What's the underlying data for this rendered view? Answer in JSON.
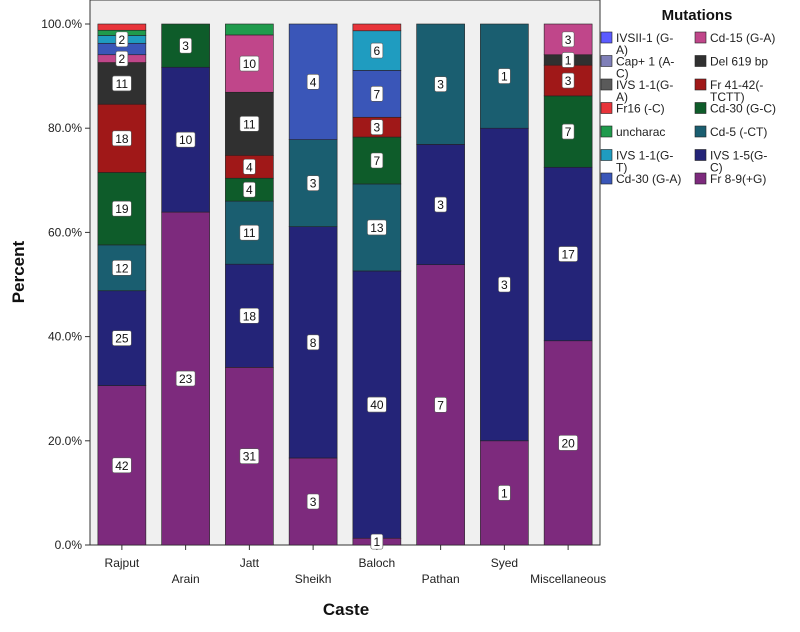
{
  "chart_data": {
    "type": "bar",
    "stacked": true,
    "title": "",
    "xlabel": "Caste",
    "ylabel": "Percent",
    "ylim": [
      0,
      100
    ],
    "yticks": [
      "0.0%",
      "20.0%",
      "40.0%",
      "60.0%",
      "80.0%",
      "100.0%"
    ],
    "categories": [
      "Rajput",
      "Arain",
      "Jatt",
      "Sheikh",
      "Baloch",
      "Pathan",
      "Syed",
      "Miscellaneous"
    ],
    "legend_title": "Mutations",
    "legend": [
      {
        "name": "IVSII-1 (G-A)",
        "lines": [
          "IVSII-1 (G-",
          "A)"
        ],
        "color": "#5b5bff"
      },
      {
        "name": "Cap+ 1 (A-C)",
        "lines": [
          "Cap+ 1 (A-",
          "C)"
        ],
        "color": "#7f7fb8"
      },
      {
        "name": "IVS 1-1(G-A)",
        "lines": [
          "IVS 1-1(G-",
          "A)"
        ],
        "color": "#5a5a5a"
      },
      {
        "name": "Fr16 (-C)",
        "lines": [
          "Fr16 (-C)"
        ],
        "color": "#e8343a"
      },
      {
        "name": "uncharac",
        "lines": [
          "uncharac"
        ],
        "color": "#1f9a4c"
      },
      {
        "name": "IVS 1-1(G-T)",
        "lines": [
          "IVS 1-1(G-",
          "T)"
        ],
        "color": "#1f9cc0"
      },
      {
        "name": "Cd-30 (G-A)",
        "lines": [
          "Cd-30 (G-A)"
        ],
        "color": "#3a56b8"
      },
      {
        "name": "Cd-15 (G-A)",
        "lines": [
          "Cd-15 (G-A)"
        ],
        "color": "#c0468a"
      },
      {
        "name": "Del 619 bp",
        "lines": [
          "Del 619 bp"
        ],
        "color": "#303030"
      },
      {
        "name": "Fr 41-42(-TCTT)",
        "lines": [
          "Fr 41-42(-",
          "TCTT)"
        ],
        "color": "#a01818"
      },
      {
        "name": "Cd-30 (G-C)",
        "lines": [
          "Cd-30 (G-C)"
        ],
        "color": "#0e5c2a"
      },
      {
        "name": "Cd-5 (-CT)",
        "lines": [
          "Cd-5 (-CT)"
        ],
        "color": "#1a5e70"
      },
      {
        "name": "IVS 1-5(G-C)",
        "lines": [
          "IVS 1-5(G-",
          "C)"
        ],
        "color": "#242478"
      },
      {
        "name": "Fr 8-9(+G)",
        "lines": [
          "Fr 8-9(+G)"
        ],
        "color": "#7d2a7d"
      }
    ],
    "stacks": [
      {
        "category": "Rajput",
        "segments": [
          {
            "mutation": "Fr 8-9(+G)",
            "percent": 30.6,
            "label": "42"
          },
          {
            "mutation": "IVS 1-5(G-C)",
            "percent": 18.2,
            "label": "25"
          },
          {
            "mutation": "Cd-5 (-CT)",
            "percent": 8.8,
            "label": "12"
          },
          {
            "mutation": "Cd-30 (G-C)",
            "percent": 13.9,
            "label": "19"
          },
          {
            "mutation": "Fr 41-42(-TCTT)",
            "percent": 13.1,
            "label": "18"
          },
          {
            "mutation": "Del 619 bp",
            "percent": 8.0,
            "label": "11"
          },
          {
            "mutation": "Cd-15 (G-A)",
            "percent": 1.5,
            "label": "2"
          },
          {
            "mutation": "Cd-30 (G-A)",
            "percent": 2.2,
            "label": ""
          },
          {
            "mutation": "IVS 1-1(G-T)",
            "percent": 1.5,
            "label": "2"
          },
          {
            "mutation": "uncharac",
            "percent": 1.0,
            "label": ""
          },
          {
            "mutation": "Fr16 (-C)",
            "percent": 1.2,
            "label": ""
          }
        ]
      },
      {
        "category": "Arain",
        "segments": [
          {
            "mutation": "Fr 8-9(+G)",
            "percent": 63.9,
            "label": "23"
          },
          {
            "mutation": "IVS 1-5(G-C)",
            "percent": 27.8,
            "label": "10"
          },
          {
            "mutation": "Cd-30 (G-C)",
            "percent": 8.3,
            "label": "3"
          }
        ]
      },
      {
        "category": "Jatt",
        "segments": [
          {
            "mutation": "Fr 8-9(+G)",
            "percent": 34.1,
            "label": "31"
          },
          {
            "mutation": "IVS 1-5(G-C)",
            "percent": 19.8,
            "label": "18"
          },
          {
            "mutation": "Cd-5 (-CT)",
            "percent": 12.1,
            "label": "11"
          },
          {
            "mutation": "Cd-30 (G-C)",
            "percent": 4.4,
            "label": "4"
          },
          {
            "mutation": "Fr 41-42(-TCTT)",
            "percent": 4.4,
            "label": "4"
          },
          {
            "mutation": "Del 619 bp",
            "percent": 12.1,
            "label": "11"
          },
          {
            "mutation": "Cd-15 (G-A)",
            "percent": 11.0,
            "label": "10"
          },
          {
            "mutation": "uncharac",
            "percent": 2.1,
            "label": ""
          }
        ]
      },
      {
        "category": "Sheikh",
        "segments": [
          {
            "mutation": "Fr 8-9(+G)",
            "percent": 16.7,
            "label": "3"
          },
          {
            "mutation": "IVS 1-5(G-C)",
            "percent": 44.4,
            "label": "8"
          },
          {
            "mutation": "Cd-5 (-CT)",
            "percent": 16.7,
            "label": "3"
          },
          {
            "mutation": "Cd-30 (G-A)",
            "percent": 22.2,
            "label": "4"
          }
        ]
      },
      {
        "category": "Baloch",
        "segments": [
          {
            "mutation": "Fr 8-9(+G)",
            "percent": 1.3,
            "label": "1"
          },
          {
            "mutation": "IVS 1-5(G-C)",
            "percent": 51.3,
            "label": "40"
          },
          {
            "mutation": "Cd-5 (-CT)",
            "percent": 16.7,
            "label": "13"
          },
          {
            "mutation": "Cd-30 (G-C)",
            "percent": 9.0,
            "label": "7"
          },
          {
            "mutation": "Fr 41-42(-TCTT)",
            "percent": 3.8,
            "label": "3"
          },
          {
            "mutation": "Cd-30 (G-A)",
            "percent": 9.0,
            "label": "7"
          },
          {
            "mutation": "IVS 1-1(G-T)",
            "percent": 7.6,
            "label": "6"
          },
          {
            "mutation": "Fr16 (-C)",
            "percent": 1.3,
            "label": ""
          }
        ]
      },
      {
        "category": "Pathan",
        "segments": [
          {
            "mutation": "Fr 8-9(+G)",
            "percent": 53.8,
            "label": "7"
          },
          {
            "mutation": "IVS 1-5(G-C)",
            "percent": 23.1,
            "label": "3"
          },
          {
            "mutation": "Cd-5 (-CT)",
            "percent": 23.1,
            "label": "3"
          }
        ]
      },
      {
        "category": "Syed",
        "segments": [
          {
            "mutation": "Fr 8-9(+G)",
            "percent": 20.0,
            "label": "1"
          },
          {
            "mutation": "IVS 1-5(G-C)",
            "percent": 60.0,
            "label": "3"
          },
          {
            "mutation": "Cd-5 (-CT)",
            "percent": 20.0,
            "label": "1"
          }
        ]
      },
      {
        "category": "Miscellaneous",
        "segments": [
          {
            "mutation": "Fr 8-9(+G)",
            "percent": 39.2,
            "label": "20"
          },
          {
            "mutation": "IVS 1-5(G-C)",
            "percent": 33.3,
            "label": "17"
          },
          {
            "mutation": "Cd-30 (G-C)",
            "percent": 13.7,
            "label": "7"
          },
          {
            "mutation": "Fr 41-42(-TCTT)",
            "percent": 5.9,
            "label": "3"
          },
          {
            "mutation": "Del 619 bp",
            "percent": 2.0,
            "label": "1"
          },
          {
            "mutation": "Cd-15 (G-A)",
            "percent": 5.9,
            "label": "3"
          }
        ]
      }
    ]
  }
}
